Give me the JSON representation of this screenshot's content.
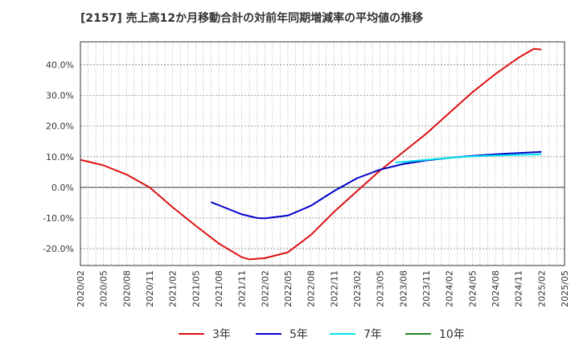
{
  "title": "[2157]  売上高12か月移動合計の対前年同期増減率の平均値の推移",
  "chart_data": {
    "type": "line",
    "title": "[2157]  売上高12か月移動合計の対前年同期増減率の平均値の推移",
    "ylim": [
      -25.5,
      47.5
    ],
    "yticks": [
      -20,
      -10,
      0,
      10,
      20,
      30,
      40
    ],
    "ytick_labels": [
      "-20.0%",
      "-10.0%",
      "0.0%",
      "10.0%",
      "20.0%",
      "30.0%",
      "40.0%"
    ],
    "xticks": [
      "2020/02",
      "2020/05",
      "2020/08",
      "2020/11",
      "2021/02",
      "2021/05",
      "2021/08",
      "2021/11",
      "2022/02",
      "2022/05",
      "2022/08",
      "2022/11",
      "2023/02",
      "2023/05",
      "2023/08",
      "2023/11",
      "2024/02",
      "2024/05",
      "2024/08",
      "2024/11",
      "2025/02",
      "2025/05"
    ],
    "grid": true,
    "legend_position": "bottom",
    "series": [
      {
        "name": "3年",
        "color": "#dd1111",
        "points": [
          [
            "2020/02",
            9.0
          ],
          [
            "2020/05",
            7.2
          ],
          [
            "2020/08",
            4.2
          ],
          [
            "2020/11",
            0.0
          ],
          [
            "2021/02",
            -6.5
          ],
          [
            "2021/05",
            -12.5
          ],
          [
            "2021/08",
            -18.3
          ],
          [
            "2021/11",
            -22.8
          ],
          [
            "2021/12",
            -23.5
          ],
          [
            "2022/02",
            -23.1
          ],
          [
            "2022/05",
            -21.2
          ],
          [
            "2022/08",
            -15.5
          ],
          [
            "2022/11",
            -8.0
          ],
          [
            "2023/02",
            -1.2
          ],
          [
            "2023/05",
            5.5
          ],
          [
            "2023/08",
            11.5
          ],
          [
            "2023/11",
            17.5
          ],
          [
            "2024/02",
            24.3
          ],
          [
            "2024/05",
            31.0
          ],
          [
            "2024/08",
            37.0
          ],
          [
            "2024/11",
            42.3
          ],
          [
            "2025/01",
            45.2
          ],
          [
            "2025/02",
            45.0
          ]
        ]
      },
      {
        "name": "5年",
        "color": "#0000cc",
        "points": [
          [
            "2021/07",
            -4.8
          ],
          [
            "2021/08",
            -5.8
          ],
          [
            "2021/11",
            -8.8
          ],
          [
            "2022/01",
            -10.0
          ],
          [
            "2022/02",
            -10.1
          ],
          [
            "2022/05",
            -9.2
          ],
          [
            "2022/08",
            -6.0
          ],
          [
            "2022/11",
            -1.2
          ],
          [
            "2023/02",
            3.0
          ],
          [
            "2023/05",
            5.8
          ],
          [
            "2023/08",
            7.6
          ],
          [
            "2023/11",
            8.8
          ],
          [
            "2024/02",
            9.6
          ],
          [
            "2024/05",
            10.3
          ],
          [
            "2024/08",
            10.8
          ],
          [
            "2024/11",
            11.2
          ],
          [
            "2025/02",
            11.6
          ]
        ]
      },
      {
        "name": "7年",
        "color": "#00e5ee",
        "points": [
          [
            "2023/07",
            8.1
          ],
          [
            "2023/08",
            8.3
          ],
          [
            "2023/11",
            9.0
          ],
          [
            "2024/02",
            9.6
          ],
          [
            "2024/05",
            10.1
          ],
          [
            "2024/08",
            10.4
          ],
          [
            "2024/11",
            10.6
          ],
          [
            "2025/02",
            10.8
          ]
        ]
      },
      {
        "name": "10年",
        "color": "#228822",
        "points": []
      }
    ]
  }
}
